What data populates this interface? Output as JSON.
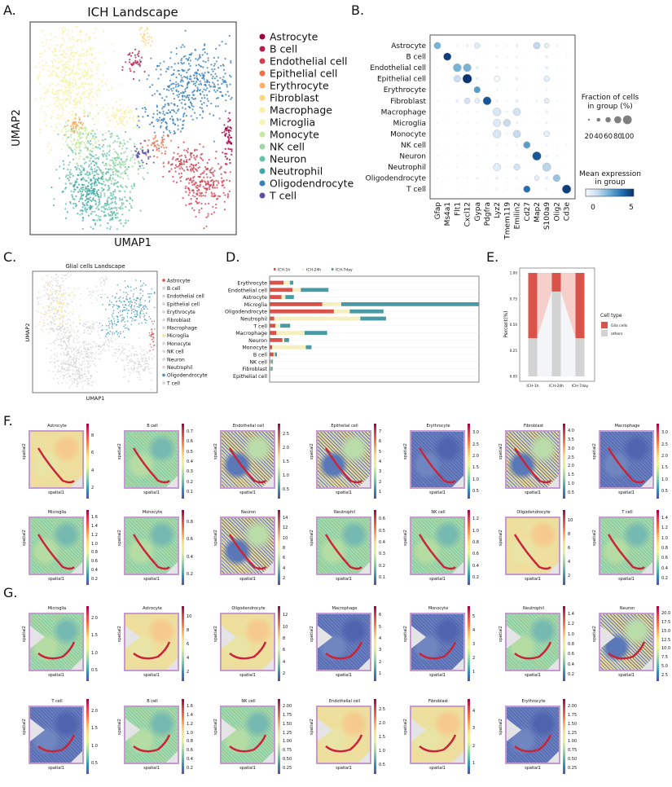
{
  "panel_labels": {
    "A": "A.",
    "B": "B.",
    "C": "C.",
    "D": "D.",
    "E": "E.",
    "F": "F.",
    "G": "G."
  },
  "chart_data": [
    {
      "id": "A",
      "type": "scatter",
      "title": "ICH Landscape",
      "xlabel": "UMAP1",
      "ylabel": "UMAP2",
      "legend_placement": "right",
      "legend": [
        {
          "name": "Astrocyte",
          "color": "#9e0142"
        },
        {
          "name": "B cell",
          "color": "#b61f4b"
        },
        {
          "name": "Endothelial cell",
          "color": "#d53e4f"
        },
        {
          "name": "Epithelial cell",
          "color": "#f46d43"
        },
        {
          "name": "Erythrocyte",
          "color": "#fdae61"
        },
        {
          "name": "Fibroblast",
          "color": "#fdd480"
        },
        {
          "name": "Macrophage",
          "color": "#f7f0a6"
        },
        {
          "name": "Microglia",
          "color": "#f1f7b0"
        },
        {
          "name": "Monocyte",
          "color": "#c6e89e"
        },
        {
          "name": "NK cell",
          "color": "#9fd8a4"
        },
        {
          "name": "Neuron",
          "color": "#66c2a5"
        },
        {
          "name": "Neutrophil",
          "color": "#3ea8a6"
        },
        {
          "name": "Oligodendrocyte",
          "color": "#3a7fb8"
        },
        {
          "name": "T cell",
          "color": "#5e4fa2"
        }
      ]
    },
    {
      "id": "B",
      "type": "dotplot",
      "rows": [
        "Astrocyte",
        "B cell",
        "Endothelial cell",
        "Epithelial cell",
        "Erythrocyte",
        "Fibroblast",
        "Macrophage",
        "Microglia",
        "Monocyte",
        "NK cell",
        "Neuron",
        "Neutrophil",
        "Oligodendrocyte",
        "T cell"
      ],
      "columns": [
        "Gfap",
        "Ms4a1",
        "Flt1",
        "Cxcl12",
        "Gypa",
        "Pdgfra",
        "Lyz2",
        "Tmem119",
        "Emilin2",
        "Cd27",
        "Map2",
        "S100a9",
        "Olig2",
        "Cd3e"
      ],
      "fraction_pct": [
        [
          55,
          2,
          6,
          15,
          35,
          4,
          12,
          6,
          14,
          2,
          55,
          30,
          10,
          4
        ],
        [
          4,
          70,
          4,
          4,
          4,
          3,
          10,
          5,
          8,
          3,
          4,
          14,
          3,
          4
        ],
        [
          5,
          3,
          80,
          75,
          14,
          3,
          10,
          6,
          10,
          3,
          4,
          18,
          3,
          4
        ],
        [
          3,
          2,
          55,
          100,
          10,
          2,
          40,
          2,
          14,
          2,
          2,
          38,
          2,
          2
        ],
        [
          4,
          3,
          4,
          4,
          50,
          3,
          8,
          4,
          7,
          3,
          3,
          8,
          3,
          3
        ],
        [
          4,
          3,
          14,
          40,
          30,
          80,
          10,
          6,
          18,
          3,
          8,
          30,
          6,
          3
        ],
        [
          4,
          3,
          6,
          5,
          6,
          3,
          75,
          8,
          65,
          3,
          4,
          16,
          3,
          3
        ],
        [
          4,
          3,
          5,
          5,
          5,
          3,
          65,
          60,
          8,
          3,
          4,
          10,
          3,
          3
        ],
        [
          4,
          3,
          5,
          4,
          5,
          3,
          75,
          6,
          65,
          3,
          4,
          40,
          3,
          3
        ],
        [
          4,
          3,
          4,
          4,
          5,
          3,
          8,
          5,
          7,
          55,
          4,
          8,
          3,
          6
        ],
        [
          4,
          3,
          5,
          5,
          6,
          3,
          8,
          5,
          8,
          3,
          90,
          14,
          8,
          3
        ],
        [
          4,
          3,
          5,
          4,
          5,
          3,
          65,
          6,
          45,
          3,
          4,
          85,
          3,
          3
        ],
        [
          5,
          3,
          6,
          6,
          10,
          4,
          12,
          5,
          8,
          3,
          28,
          20,
          60,
          3
        ],
        [
          3,
          2,
          4,
          4,
          5,
          3,
          10,
          5,
          6,
          55,
          3,
          10,
          3,
          90
        ]
      ],
      "mean_expression": [
        [
          2.5,
          0,
          0.3,
          0.4,
          0.6,
          0.2,
          0.3,
          0.2,
          0.4,
          0.1,
          1.4,
          0.5,
          0.3,
          0.2
        ],
        [
          0.2,
          5,
          0.2,
          0.2,
          0.2,
          0.1,
          0.3,
          0.2,
          0.3,
          0.1,
          0.2,
          0.4,
          0.1,
          0.2
        ],
        [
          0.2,
          0.1,
          2.5,
          2.5,
          0.5,
          0.1,
          0.3,
          0.2,
          0.3,
          0.1,
          0.2,
          0.4,
          0.1,
          0.1
        ],
        [
          0.1,
          0.1,
          1.2,
          5.2,
          0.5,
          0.1,
          0.05,
          0.1,
          0.4,
          0.1,
          0.1,
          0.5,
          0.1,
          0.1
        ],
        [
          0.2,
          0.1,
          0.2,
          0.2,
          3,
          0.1,
          0.3,
          0.2,
          0.3,
          0.1,
          0.2,
          0.3,
          0.1,
          0.1
        ],
        [
          0.2,
          0.1,
          0.5,
          1,
          0.5,
          4.5,
          0.3,
          0.2,
          0.4,
          0.1,
          0.3,
          0.5,
          0.2,
          0.1
        ],
        [
          0.2,
          0.1,
          0.2,
          0.2,
          0.3,
          0.1,
          0.8,
          0.3,
          1,
          0.1,
          0.2,
          0.4,
          0.1,
          0.1
        ],
        [
          0.2,
          0.1,
          0.2,
          0.2,
          0.2,
          0.1,
          0.7,
          1.3,
          0.3,
          0.1,
          0.2,
          0.3,
          0.1,
          0.1
        ],
        [
          0.2,
          0.1,
          0.2,
          0.2,
          0.2,
          0.1,
          0.8,
          0.3,
          1.3,
          0.1,
          0.2,
          0.5,
          0.1,
          0.1
        ],
        [
          0.2,
          0.1,
          0.2,
          0.2,
          0.2,
          0.1,
          0.3,
          0.2,
          0.3,
          3,
          0.2,
          0.3,
          0.1,
          0.3
        ],
        [
          0.2,
          0.1,
          0.2,
          0.2,
          0.3,
          0.1,
          0.3,
          0.2,
          0.3,
          0.1,
          4.5,
          0.4,
          0.3,
          0.1
        ],
        [
          0.2,
          0.1,
          0.2,
          0.2,
          0.2,
          0.1,
          0.6,
          0.2,
          1,
          0.1,
          0.2,
          1.5,
          0.1,
          0.1
        ],
        [
          0.2,
          0.1,
          0.2,
          0.2,
          0.4,
          0.2,
          0.4,
          0.2,
          0.3,
          0.1,
          0.4,
          0.4,
          2,
          0.1
        ],
        [
          0.1,
          0.1,
          0.2,
          0.2,
          0.2,
          0.1,
          0.3,
          0.2,
          0.2,
          4,
          0.1,
          0.4,
          0.1,
          5
        ]
      ],
      "size_legend": {
        "title_line1": "Fraction of cells",
        "title_line2": "in group (%)",
        "ticks": [
          "20",
          "40",
          "60",
          "80",
          "100"
        ]
      },
      "color_legend": {
        "title_line1": "Mean expression",
        "title_line2": "in group",
        "ticks": [
          "0",
          "5"
        ],
        "range": [
          0,
          5.3
        ],
        "colors": [
          "#f7fbff",
          "#c6dbef",
          "#6baed6",
          "#2171b5",
          "#08306b"
        ]
      }
    },
    {
      "id": "C",
      "type": "scatter",
      "title": "Glial cells Landscape",
      "xlabel": "UMAP1",
      "ylabel": "UMAP2",
      "legend_placement": "right",
      "legend": [
        {
          "name": "Astrocyte",
          "color": "#d9534a"
        },
        {
          "name": "B cell",
          "color": "#d3d3d3"
        },
        {
          "name": "Endothelial cell",
          "color": "#d3d3d3"
        },
        {
          "name": "Epithelial cell",
          "color": "#d3d3d3"
        },
        {
          "name": "Erythrocyte",
          "color": "#d3d3d3"
        },
        {
          "name": "Fibroblast",
          "color": "#d3d3d3"
        },
        {
          "name": "Macrophage",
          "color": "#d3d3d3"
        },
        {
          "name": "Microglia",
          "color": "#f3e08a"
        },
        {
          "name": "Monocyte",
          "color": "#d3d3d3"
        },
        {
          "name": "NK cell",
          "color": "#d3d3d3"
        },
        {
          "name": "Neuron",
          "color": "#d3d3d3"
        },
        {
          "name": "Neutrophil",
          "color": "#d3d3d3"
        },
        {
          "name": "Oligodendrocyte",
          "color": "#3a93b0"
        },
        {
          "name": "T cell",
          "color": "#d3d3d3"
        }
      ]
    },
    {
      "id": "D",
      "type": "bar",
      "stacked": true,
      "orientation": "horizontal",
      "legend_placement": "top",
      "xlim": [
        0,
        100
      ],
      "categories": [
        "Erythrocyte",
        "Endothelial cell",
        "Astrocyte",
        "Microglia",
        "Oligodendrocyte",
        "Neutrophil",
        "T cell",
        "Macrophage",
        "Neuron",
        "Monocyte",
        "B cell",
        "NK cell",
        "Fibroblast",
        "Epithelial cell"
      ],
      "series": [
        {
          "name": "ICH-1h",
          "color": "#d9534a",
          "values": [
            6.7,
            10.9,
            5.7,
            25.1,
            30.7,
            2.2,
            2.8,
            3.2,
            6.1,
            1.2,
            1.9,
            0.5,
            0.4,
            0.1
          ]
        },
        {
          "name": "ICH-24h",
          "color": "#f6efbf",
          "values": [
            3.0,
            4.0,
            1.8,
            9.1,
            7.6,
            41.1,
            2.3,
            13.5,
            0.9,
            16.1,
            0.6,
            0.3,
            0.3,
            0.0
          ]
        },
        {
          "name": "ICH-7day",
          "color": "#4a9aa6",
          "values": [
            1.6,
            13.2,
            4.1,
            65.8,
            16.1,
            12.3,
            4.7,
            10.8,
            2.3,
            2.7,
            1.0,
            0.7,
            0.7,
            0.1
          ]
        }
      ]
    },
    {
      "id": "E",
      "type": "bar",
      "stacked": true,
      "ylabel": "Percent(%)",
      "ylim": [
        0,
        1
      ],
      "yticks": [
        "0.00",
        "0.25",
        "0.50",
        "0.75",
        "1.00"
      ],
      "categories": [
        "ICH-1h",
        "ICH-24h",
        "ICH-7day"
      ],
      "legend_title": "Cell type",
      "legend_placement": "right",
      "series": [
        {
          "name": "others",
          "color": "#d3d3d3",
          "values": [
            0.37,
            0.82,
            0.37
          ]
        },
        {
          "name": "Glia cells",
          "color": "#d9534a",
          "values": [
            0.63,
            0.18,
            0.63
          ]
        }
      ]
    },
    {
      "id": "F",
      "type": "heatmap",
      "xlabel": "spatial1",
      "ylabel": "spatial2",
      "colormap": "Spectral_r",
      "panels": [
        {
          "title": "Astrocyte",
          "ticks": [
            "2",
            "4",
            "6",
            "8"
          ],
          "tone": "yellow"
        },
        {
          "title": "B cell",
          "ticks": [
            "0.1",
            "0.2",
            "0.3",
            "0.4",
            "0.5",
            "0.6",
            "0.7"
          ],
          "tone": "green"
        },
        {
          "title": "Endothelial cell",
          "ticks": [
            "0.5",
            "1.0",
            "1.5",
            "2.0",
            "2.5"
          ],
          "tone": "mixed"
        },
        {
          "title": "Epithelial cell",
          "ticks": [
            "1",
            "2",
            "3",
            "4",
            "5",
            "6",
            "7"
          ],
          "tone": "mixed"
        },
        {
          "title": "Erythrocyte",
          "ticks": [
            "0.5",
            "1.0",
            "1.5",
            "2.0",
            "2.5",
            "3.0"
          ],
          "tone": "blue"
        },
        {
          "title": "Fibroblast",
          "ticks": [
            "0.5",
            "1.0",
            "1.5",
            "2.0",
            "2.5",
            "3.0",
            "3.5",
            "4.0"
          ],
          "tone": "mixed"
        },
        {
          "title": "Macrophage",
          "ticks": [
            "0.5",
            "1.0",
            "1.5",
            "2.0",
            "2.5",
            "3.0"
          ],
          "tone": "blue"
        },
        {
          "title": "Microglia",
          "ticks": [
            "0.2",
            "0.4",
            "0.6",
            "0.8",
            "1.0",
            "1.2",
            "1.4",
            "1.6"
          ],
          "tone": "green"
        },
        {
          "title": "Monocyte",
          "ticks": [
            "0.2",
            "0.4",
            "0.6",
            "0.8"
          ],
          "tone": "green"
        },
        {
          "title": "Neuron",
          "ticks": [
            "2",
            "4",
            "6",
            "8",
            "10",
            "12",
            "14"
          ],
          "tone": "mixed"
        },
        {
          "title": "Neutrophil",
          "ticks": [
            "0.1",
            "0.2",
            "0.3",
            "0.4",
            "0.5",
            "0.6"
          ],
          "tone": "green"
        },
        {
          "title": "NK cell",
          "ticks": [
            "0.2",
            "0.4",
            "0.6",
            "0.8",
            "1.0",
            "1.2"
          ],
          "tone": "green"
        },
        {
          "title": "Oligodendrocyte",
          "ticks": [
            "2",
            "4",
            "6",
            "8",
            "10"
          ],
          "tone": "yellow"
        },
        {
          "title": "T cell",
          "ticks": [
            "0.2",
            "0.4",
            "0.6",
            "0.8",
            "1.0",
            "1.2",
            "1.4"
          ],
          "tone": "green"
        }
      ]
    },
    {
      "id": "G",
      "type": "heatmap",
      "xlabel": "spatial1",
      "ylabel": "spatial2",
      "colormap": "Spectral_r",
      "panels": [
        {
          "title": "Microglia",
          "ticks": [
            "0.5",
            "1.0",
            "1.5",
            "2.0"
          ],
          "tone": "green"
        },
        {
          "title": "Astrocyte",
          "ticks": [
            "2",
            "4",
            "6",
            "8",
            "10"
          ],
          "tone": "yellow"
        },
        {
          "title": "Oligodendrocyte",
          "ticks": [
            "2",
            "4",
            "6",
            "8",
            "10",
            "12"
          ],
          "tone": "yellow"
        },
        {
          "title": "Macrophage",
          "ticks": [
            "1",
            "2",
            "3",
            "4",
            "5",
            "6"
          ],
          "tone": "blue"
        },
        {
          "title": "Monocyte",
          "ticks": [
            "1",
            "2",
            "3",
            "4",
            "5"
          ],
          "tone": "blue"
        },
        {
          "title": "Neutrophil",
          "ticks": [
            "0.2",
            "0.4",
            "0.6",
            "0.8",
            "1.0",
            "1.2",
            "1.4"
          ],
          "tone": "green"
        },
        {
          "title": "Neuron",
          "ticks": [
            "2.5",
            "5.0",
            "7.5",
            "10.0",
            "12.5",
            "15.0",
            "17.5",
            "20.0"
          ],
          "tone": "mixed"
        },
        {
          "title": "T cell",
          "ticks": [
            "0.5",
            "1.0",
            "1.5",
            "2.0"
          ],
          "tone": "blue"
        },
        {
          "title": "B cell",
          "ticks": [
            "0.2",
            "0.4",
            "0.6",
            "0.8",
            "1.0",
            "1.2",
            "1.4",
            "1.6"
          ],
          "tone": "green"
        },
        {
          "title": "NK cell",
          "ticks": [
            "0.25",
            "0.50",
            "0.75",
            "1.00",
            "1.25",
            "1.50",
            "1.75",
            "2.00"
          ],
          "tone": "green"
        },
        {
          "title": "Endothelial cell",
          "ticks": [
            "0.5",
            "1.0",
            "1.5",
            "2.0",
            "2.5"
          ],
          "tone": "yellow"
        },
        {
          "title": "Fibroblast",
          "ticks": [
            "1",
            "2",
            "3",
            "4"
          ],
          "tone": "yellow"
        },
        {
          "title": "Erythrocyte",
          "ticks": [
            "0.25",
            "0.50",
            "0.75",
            "1.00",
            "1.25",
            "1.50",
            "1.75",
            "2.00"
          ],
          "tone": "blue"
        }
      ]
    }
  ]
}
